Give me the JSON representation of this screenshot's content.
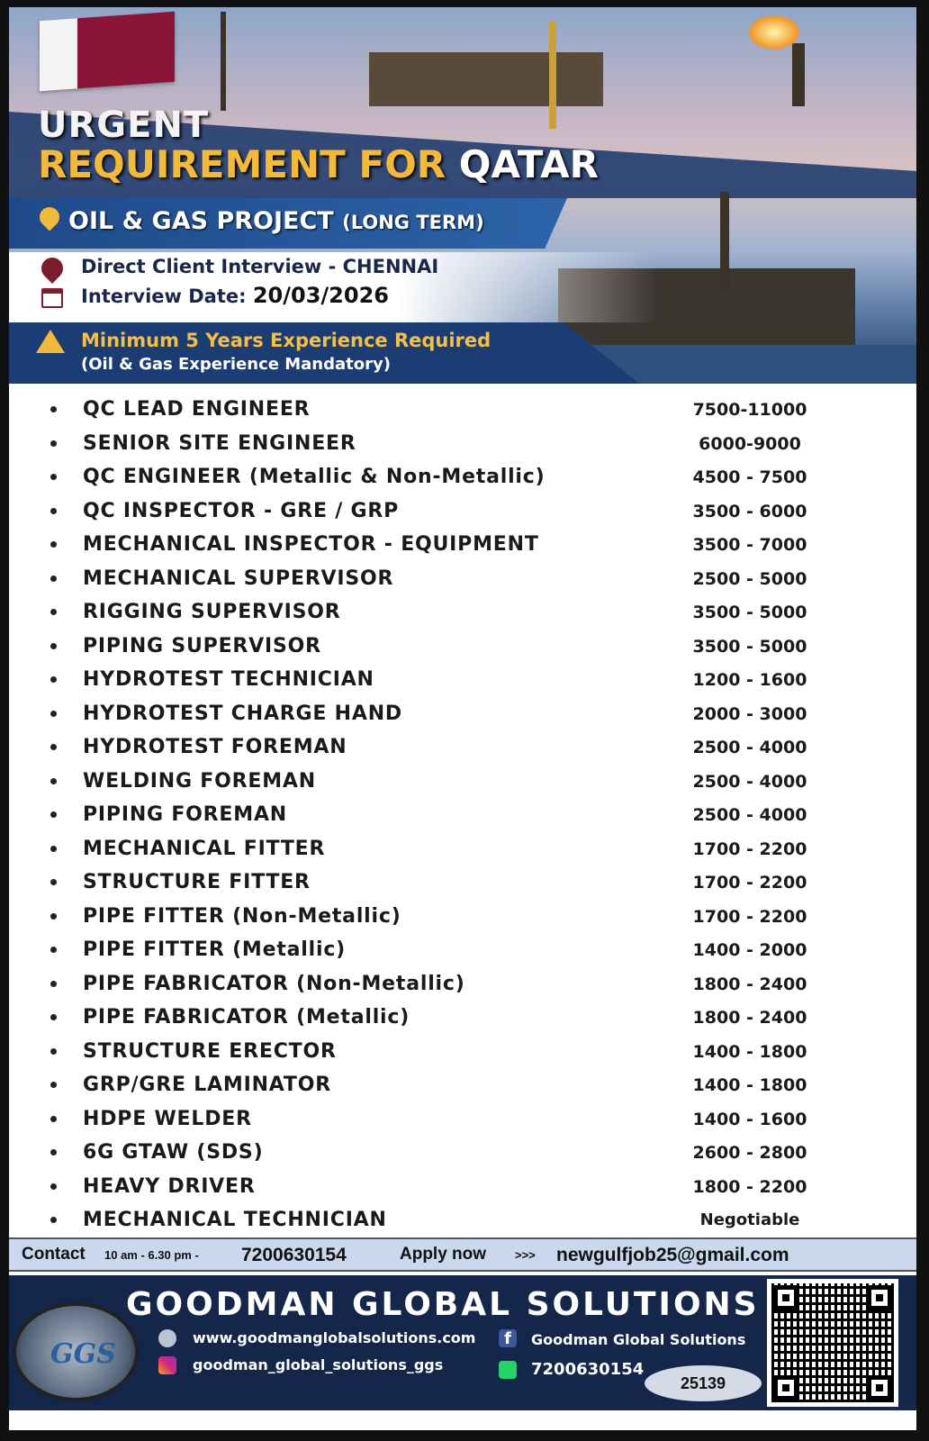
{
  "header": {
    "line1": "URGENT",
    "line2_a": "REQUIREMENT FOR ",
    "line2_b": "QATAR",
    "project": "OIL & GAS PROJECT",
    "project_term": "(LONG TERM)",
    "interview": "Direct Client Interview - CHENNAI",
    "date_label": "Interview Date: ",
    "date": "20/03/2026",
    "experience": "Minimum 5 Years Experience Required",
    "experience_note": "(Oil & Gas Experience Mandatory)"
  },
  "jobs": [
    {
      "title": "QC LEAD ENGINEER",
      "salary": "7500-11000"
    },
    {
      "title": "SENIOR SITE ENGINEER",
      "salary": "6000-9000"
    },
    {
      "title": "QC ENGINEER (Metallic & Non-Metallic)",
      "salary": "4500 - 7500"
    },
    {
      "title": "QC INSPECTOR - GRE / GRP",
      "salary": "3500 - 6000"
    },
    {
      "title": "MECHANICAL INSPECTOR - EQUIPMENT",
      "salary": "3500 - 7000"
    },
    {
      "title": "MECHANICAL SUPERVISOR",
      "salary": "2500 - 5000"
    },
    {
      "title": "RIGGING SUPERVISOR",
      "salary": "3500 - 5000"
    },
    {
      "title": "PIPING SUPERVISOR",
      "salary": "3500 - 5000"
    },
    {
      "title": "HYDROTEST TECHNICIAN",
      "salary": "1200 - 1600"
    },
    {
      "title": "HYDROTEST CHARGE HAND",
      "salary": "2000 - 3000"
    },
    {
      "title": "HYDROTEST FOREMAN",
      "salary": "2500 - 4000"
    },
    {
      "title": "WELDING FOREMAN",
      "salary": "2500 - 4000"
    },
    {
      "title": "PIPING FOREMAN",
      "salary": "2500 - 4000"
    },
    {
      "title": "MECHANICAL FITTER",
      "salary": "1700 - 2200"
    },
    {
      "title": "STRUCTURE FITTER",
      "salary": "1700 - 2200"
    },
    {
      "title": "PIPE FITTER (Non-Metallic)",
      "salary": "1700 - 2200"
    },
    {
      "title": "PIPE FITTER (Metallic)",
      "salary": "1400 - 2000"
    },
    {
      "title": "PIPE FABRICATOR (Non-Metallic)",
      "salary": "1800 - 2400"
    },
    {
      "title": "PIPE FABRICATOR (Metallic)",
      "salary": "1800 - 2400"
    },
    {
      "title": "STRUCTURE ERECTOR",
      "salary": "1400 - 1800"
    },
    {
      "title": "GRP/GRE LAMINATOR",
      "salary": "1400 - 1800"
    },
    {
      "title": "HDPE WELDER",
      "salary": "1400 - 1600"
    },
    {
      "title": "6G GTAW (SDS)",
      "salary": "2600 - 2800"
    },
    {
      "title": "HEAVY DRIVER",
      "salary": "1800 - 2200"
    },
    {
      "title": "MECHANICAL TECHNICIAN",
      "salary": "Negotiable"
    }
  ],
  "contact": {
    "label": "Contact",
    "hours": "10 am - 6.30 pm -",
    "phone": "7200630154",
    "apply": "Apply now",
    "arrows": ">>>",
    "email": "newgulfjob25@gmail.com"
  },
  "footer": {
    "logo": "GGS",
    "brand": "GOODMAN GLOBAL SOLUTIONS",
    "website": "www.goodmanglobalsolutions.com",
    "facebook": "Goodman Global Solutions",
    "instagram": "goodman_global_solutions_ggs",
    "whatsapp": "7200630154",
    "ref": "25139"
  },
  "colors": {
    "navy": "#17356a",
    "gold": "#f2b93b",
    "contact_bar": "#c9d8ec",
    "footer": "#14264a"
  }
}
